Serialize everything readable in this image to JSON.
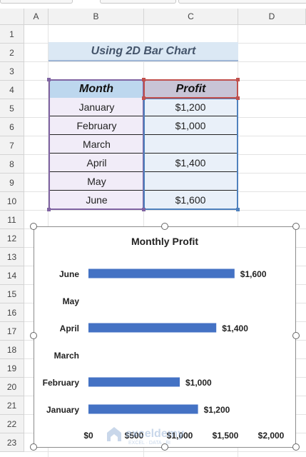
{
  "columns": [
    "A",
    "B",
    "C",
    "D"
  ],
  "rows": [
    "1",
    "2",
    "3",
    "4",
    "5",
    "6",
    "7",
    "8",
    "9",
    "10",
    "11",
    "12",
    "13",
    "14",
    "15",
    "16",
    "17",
    "18",
    "19",
    "20",
    "21",
    "22",
    "23"
  ],
  "sheet_title": "Using 2D Bar Chart",
  "table": {
    "headers": [
      "Month",
      "Profit"
    ],
    "rows": [
      {
        "month": "January",
        "profit": "$1,200"
      },
      {
        "month": "February",
        "profit": "$1,000"
      },
      {
        "month": "March",
        "profit": ""
      },
      {
        "month": "April",
        "profit": "$1,400"
      },
      {
        "month": "May",
        "profit": ""
      },
      {
        "month": "June",
        "profit": "$1,600"
      }
    ]
  },
  "colors": {
    "bar": "#4472c4",
    "title_fill": "#dbe8f4",
    "header_month_fill": "#bdd7ee",
    "header_profit_fill": "#c8c4d6"
  },
  "chart_data": {
    "type": "bar",
    "orientation": "horizontal",
    "title": "Monthly Profit",
    "categories": [
      "June",
      "May",
      "April",
      "March",
      "February",
      "January"
    ],
    "values": [
      1600,
      null,
      1400,
      null,
      1000,
      1200
    ],
    "data_labels": [
      "$1,600",
      "",
      "$1,400",
      "",
      "$1,000",
      "$1,200"
    ],
    "x_ticks": [
      0,
      500,
      1000,
      1500,
      2000
    ],
    "x_tick_labels": [
      "$0",
      "$500",
      "$1,000",
      "$1,500",
      "$2,000"
    ],
    "xlim": [
      0,
      2000
    ],
    "grid": false,
    "legend": "none"
  },
  "watermark": {
    "name": "exceldemy",
    "tagline": "EXCEL · DATA · BI"
  }
}
